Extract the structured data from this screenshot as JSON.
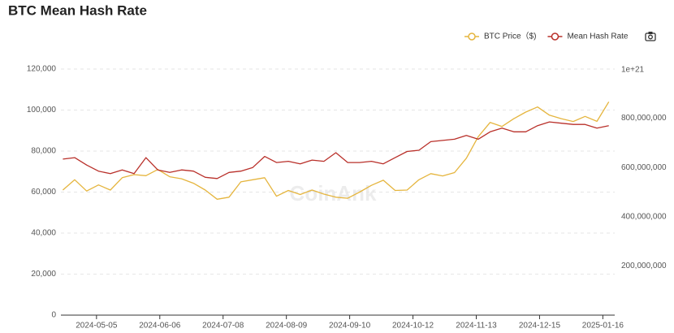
{
  "chart_data": {
    "type": "line",
    "title": "BTC Mean Hash Rate",
    "watermark": "CoinAnk",
    "y2_offset_label": "1e+21",
    "x": [
      "2024-04-18",
      "2024-04-24",
      "2024-04-30",
      "2024-05-06",
      "2024-05-12",
      "2024-05-18",
      "2024-05-24",
      "2024-05-30",
      "2024-06-05",
      "2024-06-11",
      "2024-06-17",
      "2024-06-23",
      "2024-06-29",
      "2024-07-05",
      "2024-07-11",
      "2024-07-17",
      "2024-07-23",
      "2024-07-29",
      "2024-08-04",
      "2024-08-10",
      "2024-08-16",
      "2024-08-22",
      "2024-08-28",
      "2024-09-03",
      "2024-09-09",
      "2024-09-15",
      "2024-09-21",
      "2024-09-27",
      "2024-10-03",
      "2024-10-09",
      "2024-10-15",
      "2024-10-21",
      "2024-10-27",
      "2024-11-02",
      "2024-11-08",
      "2024-11-14",
      "2024-11-20",
      "2024-11-26",
      "2024-12-02",
      "2024-12-08",
      "2024-12-14",
      "2024-12-20",
      "2024-12-26",
      "2025-01-01",
      "2025-01-07",
      "2025-01-13",
      "2025-01-19"
    ],
    "xlim": [
      "2024-04-17",
      "2025-01-22"
    ],
    "xticks": [
      "2024-05-05",
      "2024-06-06",
      "2024-07-08",
      "2024-08-09",
      "2024-09-10",
      "2024-10-12",
      "2024-11-13",
      "2024-12-15",
      "2025-01-16"
    ],
    "series": [
      {
        "name": "BTC Price（$)",
        "color": "#e5b53e",
        "axis": "y",
        "values": [
          61000,
          66000,
          60500,
          63500,
          61000,
          67000,
          68500,
          68000,
          71000,
          67500,
          66500,
          64300,
          61000,
          56500,
          57500,
          65000,
          66000,
          67000,
          58000,
          60800,
          58800,
          61000,
          59000,
          57500,
          57000,
          60000,
          63300,
          65800,
          60800,
          61000,
          66000,
          69000,
          67900,
          69500,
          76500,
          87000,
          94000,
          92000,
          95800,
          99000,
          101500,
          97500,
          95800,
          94400,
          96900,
          94500,
          104000
        ]
      },
      {
        "name": "Mean Hash Rate",
        "color": "#b9302a",
        "axis": "y2",
        "values": [
          634000000,
          640000000,
          610000000,
          585000000,
          575000000,
          590000000,
          575000000,
          640000000,
          590000000,
          580000000,
          590000000,
          585000000,
          560000000,
          555000000,
          580000000,
          585000000,
          600000000,
          645000000,
          620000000,
          625000000,
          615000000,
          630000000,
          625000000,
          660000000,
          620000000,
          620000000,
          625000000,
          615000000,
          640000000,
          665000000,
          670000000,
          705000000,
          710000000,
          715000000,
          730000000,
          715000000,
          745000000,
          760000000,
          745000000,
          745000000,
          770000000,
          785000000,
          780000000,
          775000000,
          775000000,
          760000000,
          770000000
        ]
      }
    ],
    "ylim": [
      0,
      120000
    ],
    "yticks": [
      0,
      {
        "value": 20000,
        "label": "20,000"
      },
      {
        "value": 40000,
        "label": "40,000"
      },
      {
        "value": 60000,
        "label": "60,000"
      },
      {
        "value": 80000,
        "label": "80,000"
      },
      {
        "value": 100000,
        "label": "100,000"
      },
      {
        "value": 120000,
        "label": "120,000"
      }
    ],
    "y2lim": [
      0,
      1000000000
    ],
    "y2ticks": [
      {
        "value": 200000000,
        "label": "200,000,000"
      },
      {
        "value": 400000000,
        "label": "400,000,000"
      },
      {
        "value": 600000000,
        "label": "600,000,000"
      },
      {
        "value": 800000000,
        "label": "800,000,000"
      }
    ],
    "grid": true,
    "legend": "top-right"
  }
}
